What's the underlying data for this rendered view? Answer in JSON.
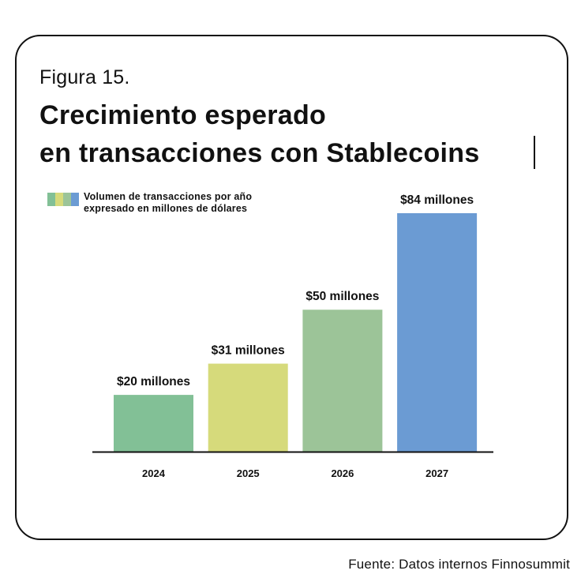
{
  "figure_label": "Figura 15.",
  "title_lines": [
    "Crecimiento esperado",
    "en transacciones con Stablecoins"
  ],
  "source": "Fuente: Datos internos Finnosummit",
  "colors": {
    "bar_2024": "#82c096",
    "bar_2025": "#d6da7b",
    "bar_2026": "#9cc498",
    "bar_2027": "#6b9bd3",
    "axis": "#111111",
    "text": "#111111"
  },
  "chart_data": {
    "type": "bar",
    "categories": [
      "2024",
      "2025",
      "2026",
      "2027"
    ],
    "values": [
      20,
      31,
      50,
      84
    ],
    "data_labels": [
      "$20 millones",
      "$31 millones",
      "$50 millones",
      "$84 millones"
    ],
    "legend": [
      "Volumen de transacciones por año",
      "expresado en millones de dólares"
    ],
    "legend_placement": "top-left",
    "ylim": [
      0,
      84
    ],
    "grid": false,
    "title": "",
    "xlabel": "",
    "ylabel": ""
  }
}
